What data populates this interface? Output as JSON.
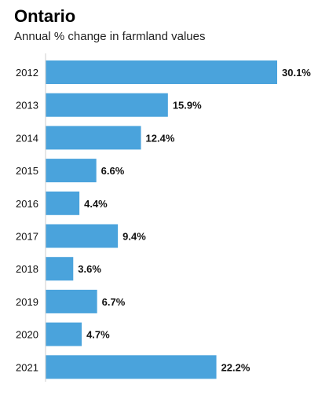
{
  "chart_data": {
    "type": "bar",
    "orientation": "horizontal",
    "title": "Ontario",
    "subtitle": "Annual % change in farmland values",
    "categories": [
      "2012",
      "2013",
      "2014",
      "2015",
      "2016",
      "2017",
      "2018",
      "2019",
      "2020",
      "2021"
    ],
    "values": [
      30.1,
      15.9,
      12.4,
      6.6,
      4.4,
      9.4,
      3.6,
      6.7,
      4.7,
      22.2
    ],
    "value_labels": [
      "30.1%",
      "15.9%",
      "12.4%",
      "6.6%",
      "4.4%",
      "9.4%",
      "3.6%",
      "6.7%",
      "4.7%",
      "22.2%"
    ],
    "xlabel": "",
    "ylabel": "",
    "xlim": [
      0,
      30.1
    ],
    "grid": false,
    "bar_color": "#4aa3dc"
  }
}
